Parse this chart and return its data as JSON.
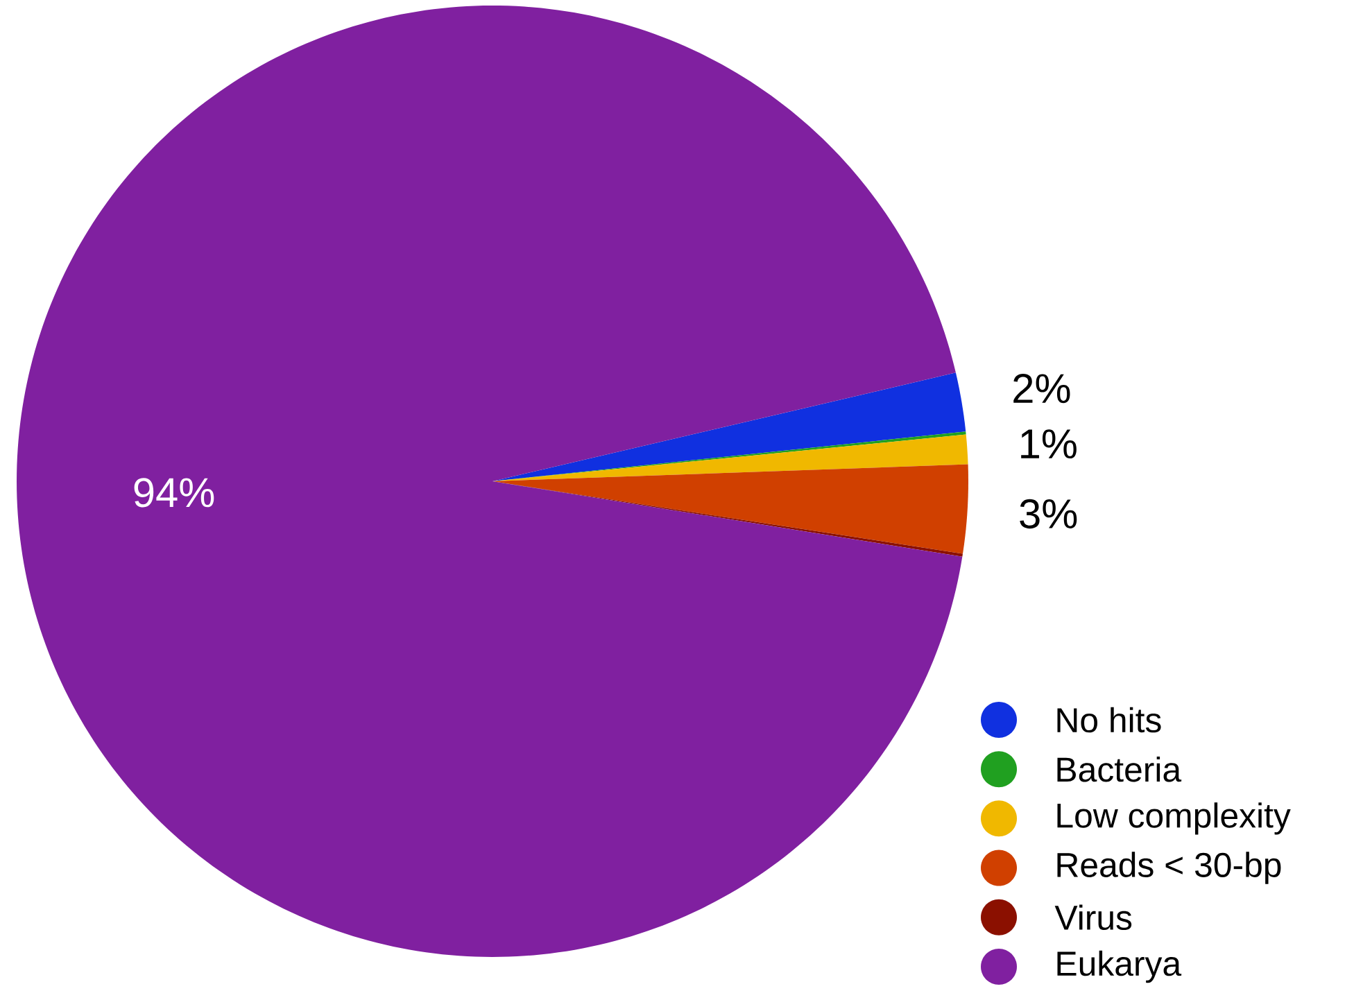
{
  "chart_data": {
    "type": "pie",
    "categories": [
      "No hits",
      "Bacteria",
      "Low complexity",
      "Reads < 30-bp",
      "Virus",
      "Eukarya"
    ],
    "values": [
      2,
      0.1,
      1,
      3,
      0.1,
      93.8
    ],
    "value_labels": [
      "2%",
      null,
      "1%",
      "3%",
      null,
      "94%"
    ],
    "colors": [
      "#1030e0",
      "#20a020",
      "#f0b800",
      "#d04000",
      "#8b1000",
      "#8020a0"
    ],
    "legend": "bottom right"
  }
}
